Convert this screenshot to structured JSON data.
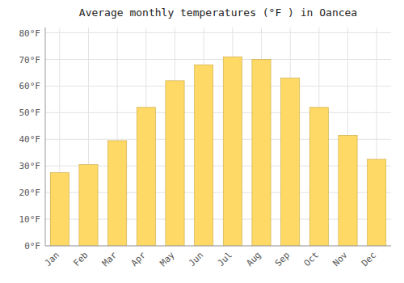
{
  "chart_data": {
    "type": "bar",
    "title": "Average monthly temperatures (°F ) in Oancea",
    "categories": [
      "Jan",
      "Feb",
      "Mar",
      "Apr",
      "May",
      "Jun",
      "Jul",
      "Aug",
      "Sep",
      "Oct",
      "Nov",
      "Dec"
    ],
    "values": [
      27.5,
      30.5,
      39.5,
      52,
      62,
      68,
      71,
      70,
      63,
      52,
      41.5,
      32.5
    ],
    "color": "#FFD966",
    "ylim": [
      0,
      82
    ],
    "yticks": [
      {
        "value": 0,
        "label": "0°F"
      },
      {
        "value": 10,
        "label": "10°F"
      },
      {
        "value": 20,
        "label": "20°F"
      },
      {
        "value": 30,
        "label": "30°F"
      },
      {
        "value": 40,
        "label": "40°F"
      },
      {
        "value": 50,
        "label": "50°F"
      },
      {
        "value": 60,
        "label": "60°F"
      },
      {
        "value": 70,
        "label": "70°F"
      },
      {
        "value": 80,
        "label": "80°F"
      }
    ],
    "grid": true
  }
}
